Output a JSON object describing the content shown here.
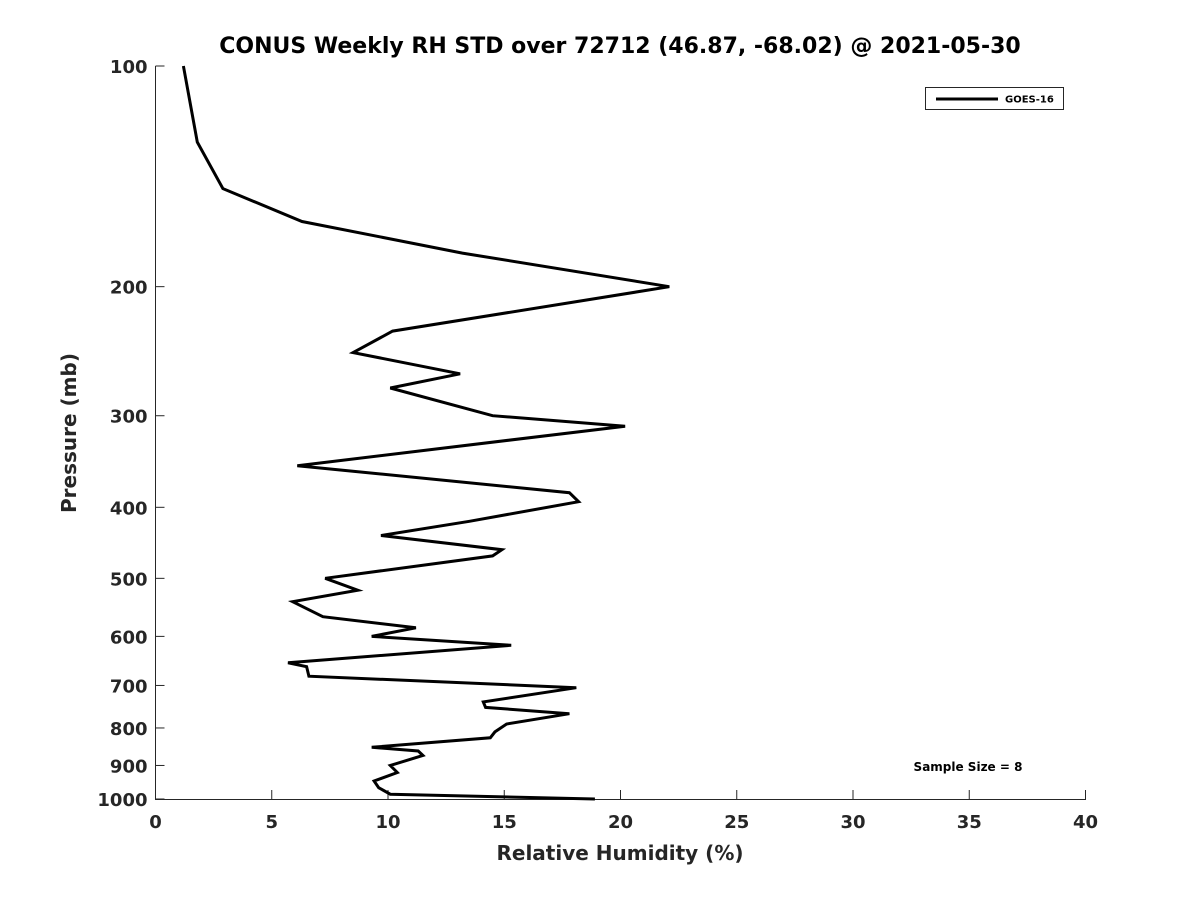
{
  "chart_data": {
    "type": "line",
    "title": "CONUS Weekly RH STD over 72712 (46.87, -68.02) @ 2021-05-30",
    "xlabel": "Relative Humidity (%)",
    "ylabel": "Pressure (mb)",
    "xlim": [
      0,
      40
    ],
    "ylim": [
      1000,
      100
    ],
    "y_scale": "log",
    "y_reversed": true,
    "x_ticks": [
      "0",
      "5",
      "10",
      "15",
      "20",
      "25",
      "30",
      "35",
      "40"
    ],
    "y_ticks": [
      "100",
      "200",
      "300",
      "400",
      "500",
      "600",
      "700",
      "800",
      "900",
      "1000"
    ],
    "grid": false,
    "legend": {
      "position": "top-right"
    },
    "annotation": "Sample Size = 8",
    "series": [
      {
        "name": "GOES-16",
        "color": "#000000",
        "points": [
          [
            18.9,
            1000
          ],
          [
            10.1,
            985
          ],
          [
            9.6,
            965
          ],
          [
            9.4,
            945
          ],
          [
            10.4,
            920
          ],
          [
            10.1,
            900
          ],
          [
            11.5,
            872
          ],
          [
            11.3,
            860
          ],
          [
            9.3,
            850
          ],
          [
            14.4,
            825
          ],
          [
            14.6,
            810
          ],
          [
            15.1,
            790
          ],
          [
            17.8,
            765
          ],
          [
            14.2,
            750
          ],
          [
            14.1,
            737
          ],
          [
            18.1,
            705
          ],
          [
            6.6,
            680
          ],
          [
            6.5,
            660
          ],
          [
            5.7,
            652
          ],
          [
            15.3,
            617
          ],
          [
            9.3,
            600
          ],
          [
            11.2,
            584
          ],
          [
            7.2,
            564
          ],
          [
            5.9,
            538
          ],
          [
            8.7,
            519
          ],
          [
            7.3,
            500
          ],
          [
            14.5,
            466
          ],
          [
            14.9,
            457
          ],
          [
            9.7,
            437
          ],
          [
            13.5,
            418
          ],
          [
            18.2,
            393
          ],
          [
            17.8,
            382
          ],
          [
            6.1,
            351
          ],
          [
            20.2,
            310
          ],
          [
            14.5,
            300
          ],
          [
            10.1,
            275
          ],
          [
            13.1,
            263
          ],
          [
            8.5,
            246
          ],
          [
            10.2,
            230
          ],
          [
            22.1,
            200
          ],
          [
            13.2,
            180
          ],
          [
            6.3,
            163
          ],
          [
            2.9,
            147
          ],
          [
            1.8,
            127
          ],
          [
            1.2,
            100
          ]
        ]
      }
    ]
  }
}
